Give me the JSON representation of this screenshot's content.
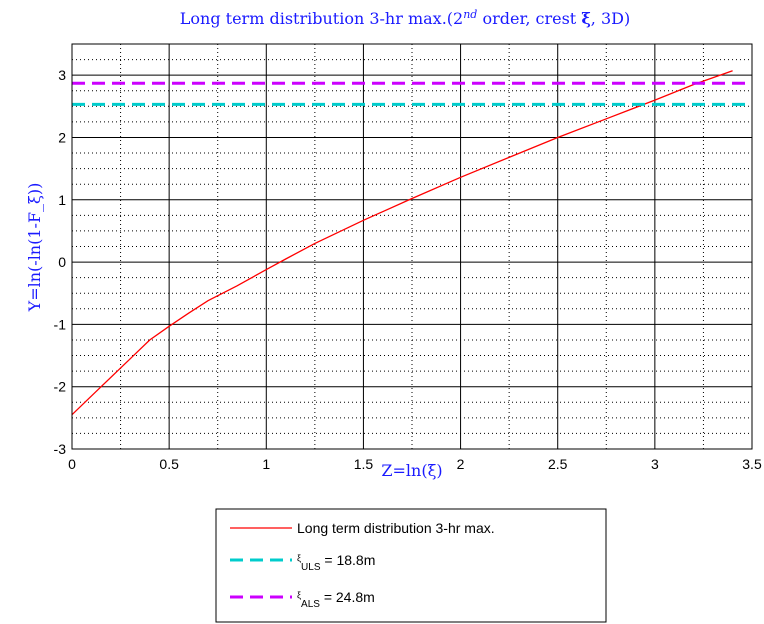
{
  "chart_data": {
    "type": "line",
    "title": {
      "prefix": "Long term distribution 3-hr max.(2",
      "sup": "nd",
      "suffix": " order, crest ",
      "symbol": "ξ",
      "end": ", 3D)"
    },
    "xlabel": "Z=ln(ξ)",
    "ylabel": "Y=ln(-ln(1-F_ξ))",
    "xlim": [
      0,
      3.5
    ],
    "ylim": [
      -3,
      3.5
    ],
    "xticks": [
      "0",
      "0.5",
      "1",
      "1.5",
      "2",
      "2.5",
      "3",
      "3.5"
    ],
    "yticks": [
      "-3",
      "-2",
      "-1",
      "0",
      "1",
      "2",
      "3"
    ],
    "grid": "major solid, minor dotted",
    "legend_position": "below plot",
    "series": [
      {
        "name": "Long term distribution 3-hr max.",
        "color": "#ff0000",
        "style": "solid",
        "x": [
          0,
          0.15,
          0.3,
          0.4,
          0.5,
          0.6,
          0.7,
          0.85,
          1.0,
          1.1,
          1.25,
          1.5,
          1.75,
          2.0,
          2.25,
          2.5,
          2.75,
          3.0,
          3.2,
          3.4
        ],
        "y": [
          -2.45,
          -2.0,
          -1.55,
          -1.25,
          -1.03,
          -0.82,
          -0.62,
          -0.38,
          -0.12,
          0.05,
          0.3,
          0.67,
          1.02,
          1.36,
          1.68,
          2.0,
          2.3,
          2.6,
          2.85,
          3.07
        ]
      },
      {
        "name": "ULS",
        "color": "#00cccc",
        "style": "dashed",
        "x": [
          0,
          3.5
        ],
        "y": [
          2.53,
          2.53
        ]
      },
      {
        "name": "ALS",
        "color": "#cc00ff",
        "style": "dashed",
        "x": [
          0,
          3.5
        ],
        "y": [
          2.87,
          2.87
        ]
      }
    ],
    "legend": [
      {
        "type": "plain",
        "text": "Long term distribution 3-hr max.",
        "color": "#ff0000",
        "style": "solid"
      },
      {
        "type": "xi",
        "sub": "ULS",
        "text": " = 18.8m",
        "color": "#00cccc",
        "style": "dashed"
      },
      {
        "type": "xi",
        "sub": "ALS",
        "text": " = 24.8m",
        "color": "#cc00ff",
        "style": "dashed"
      }
    ]
  }
}
